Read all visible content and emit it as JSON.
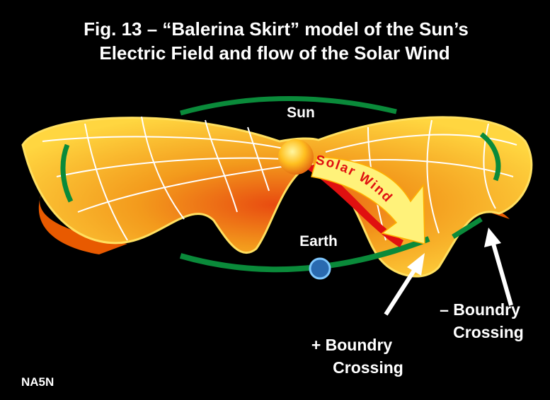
{
  "title": {
    "line1": "Fig. 13 – “Balerina Skirt” model of the Sun’s",
    "line2": "Electric Field and flow of the Solar Wind"
  },
  "labels": {
    "sun": "Sun",
    "solar_wind": "Solar Wind",
    "earth": "Earth",
    "plus_crossing": [
      "+ Boundry",
      "Crossing"
    ],
    "minus_crossing": [
      "– Boundry",
      "Crossing"
    ],
    "credit": "NA5N"
  }
}
